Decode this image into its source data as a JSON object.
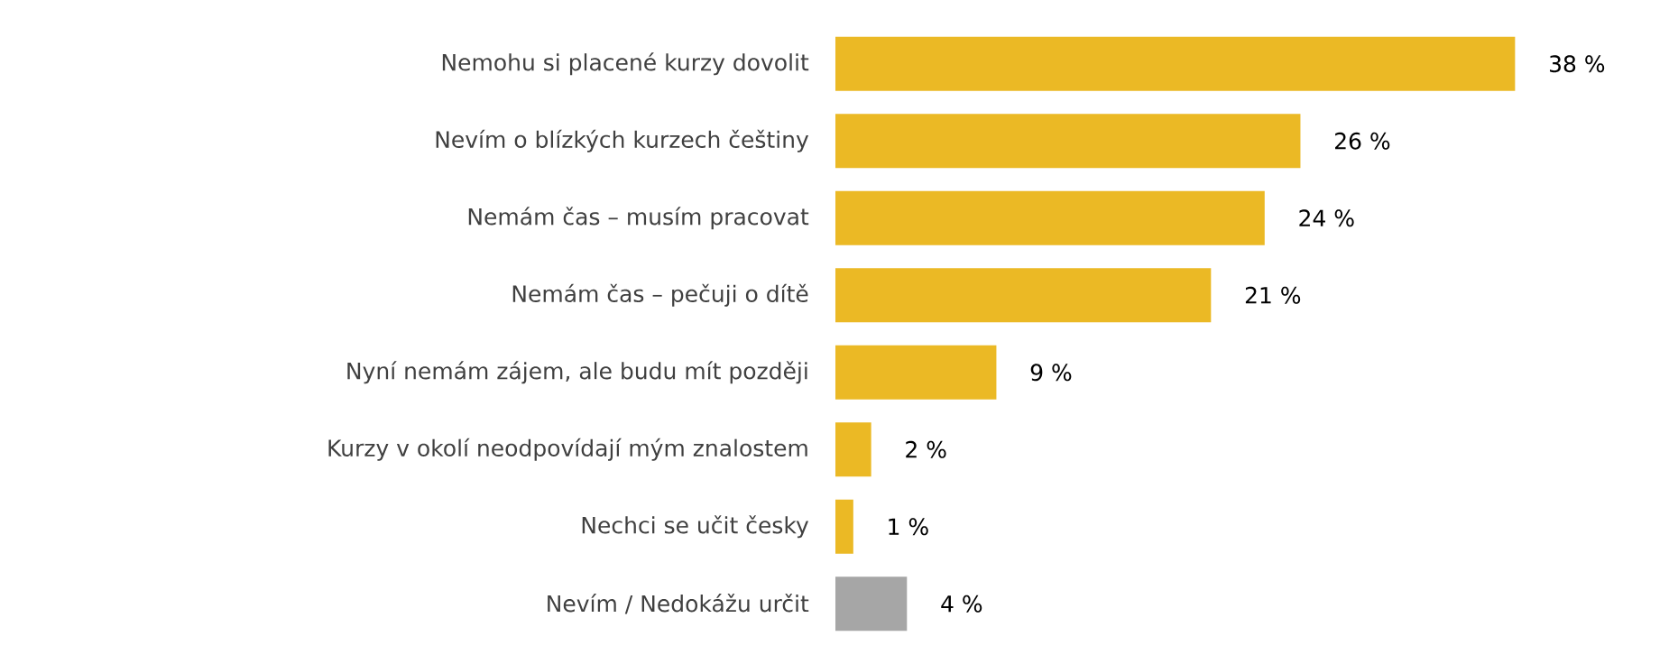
{
  "chart_data": {
    "type": "bar",
    "orientation": "horizontal",
    "categories": [
      "Nemohu si placené kurzy dovolit",
      "Nevím o blízkých kurzech češtiny",
      "Nemám čas – musím pracovat",
      "Nemám čas – pečuji o dítě",
      "Nyní nemám zájem, ale budu mít později",
      "Kurzy v okolí neodpovídají mým znalostem",
      "Nechci se učit česky",
      "Nevím / Nedokážu určit"
    ],
    "values": [
      38,
      26,
      24,
      21,
      9,
      2,
      1,
      4
    ],
    "colors": [
      "#ebb925",
      "#ebb925",
      "#ebb925",
      "#ebb925",
      "#ebb925",
      "#ebb925",
      "#ebb925",
      "#a6a6a6"
    ],
    "value_labels": [
      "38 %",
      "26 %",
      "24 %",
      "21 %",
      "9 %",
      "2 %",
      "1 %",
      "4 %"
    ]
  }
}
